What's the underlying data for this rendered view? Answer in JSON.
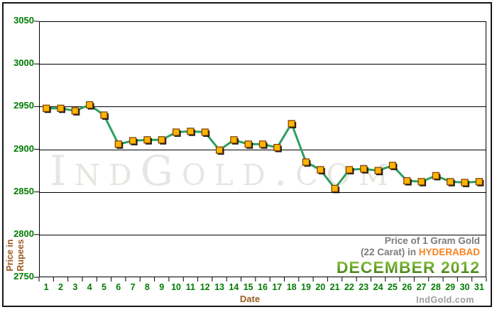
{
  "watermark": {
    "text": "IndGold.com"
  },
  "branding": {
    "site": "IndGold.com"
  },
  "y_axis": {
    "title_lines": [
      "Price in",
      "Rupees"
    ],
    "tick_labels": [
      "3050",
      "3000",
      "2950",
      "2900",
      "2850",
      "2800",
      "2750"
    ],
    "label_color": "#007C00",
    "title_color": "#9A5B1C"
  },
  "x_axis": {
    "title": "Date",
    "label_color": "#007C00"
  },
  "annotation": {
    "line1": "Price of 1 Gram Gold",
    "line2_prefix": "(22 Carat) in",
    "city": "HYDERABAD",
    "month_year": "DECEMBER 2012",
    "city_color": "#F6821F",
    "text_color": "#7C7C7C",
    "month_color": "#55990F"
  },
  "chart_data": {
    "type": "line",
    "title": "Price of 1 Gram Gold (22 Carat) in HYDERABAD - DECEMBER 2012",
    "xlabel": "Date",
    "ylabel": "Price in Rupees",
    "x": [
      1,
      2,
      3,
      4,
      5,
      6,
      7,
      8,
      9,
      10,
      11,
      12,
      13,
      14,
      15,
      16,
      17,
      18,
      19,
      20,
      21,
      22,
      23,
      24,
      25,
      26,
      27,
      28,
      29,
      30,
      31
    ],
    "values": [
      2948,
      2948,
      2945,
      2952,
      2940,
      2906,
      2910,
      2911,
      2911,
      2920,
      2921,
      2920,
      2899,
      2911,
      2906,
      2906,
      2902,
      2930,
      2885,
      2876,
      2854,
      2876,
      2877,
      2875,
      2881,
      2863,
      2862,
      2869,
      2862,
      2861,
      2862
    ],
    "ylim": [
      2750,
      3050
    ],
    "y_tick_step": 50,
    "grid": "horizontal",
    "legend": "none",
    "line_color": "#2E9E60",
    "marker": "square",
    "marker_fill": "#FFB405",
    "marker_stroke": "#7A3C00",
    "marker_shadow": "#000000"
  }
}
